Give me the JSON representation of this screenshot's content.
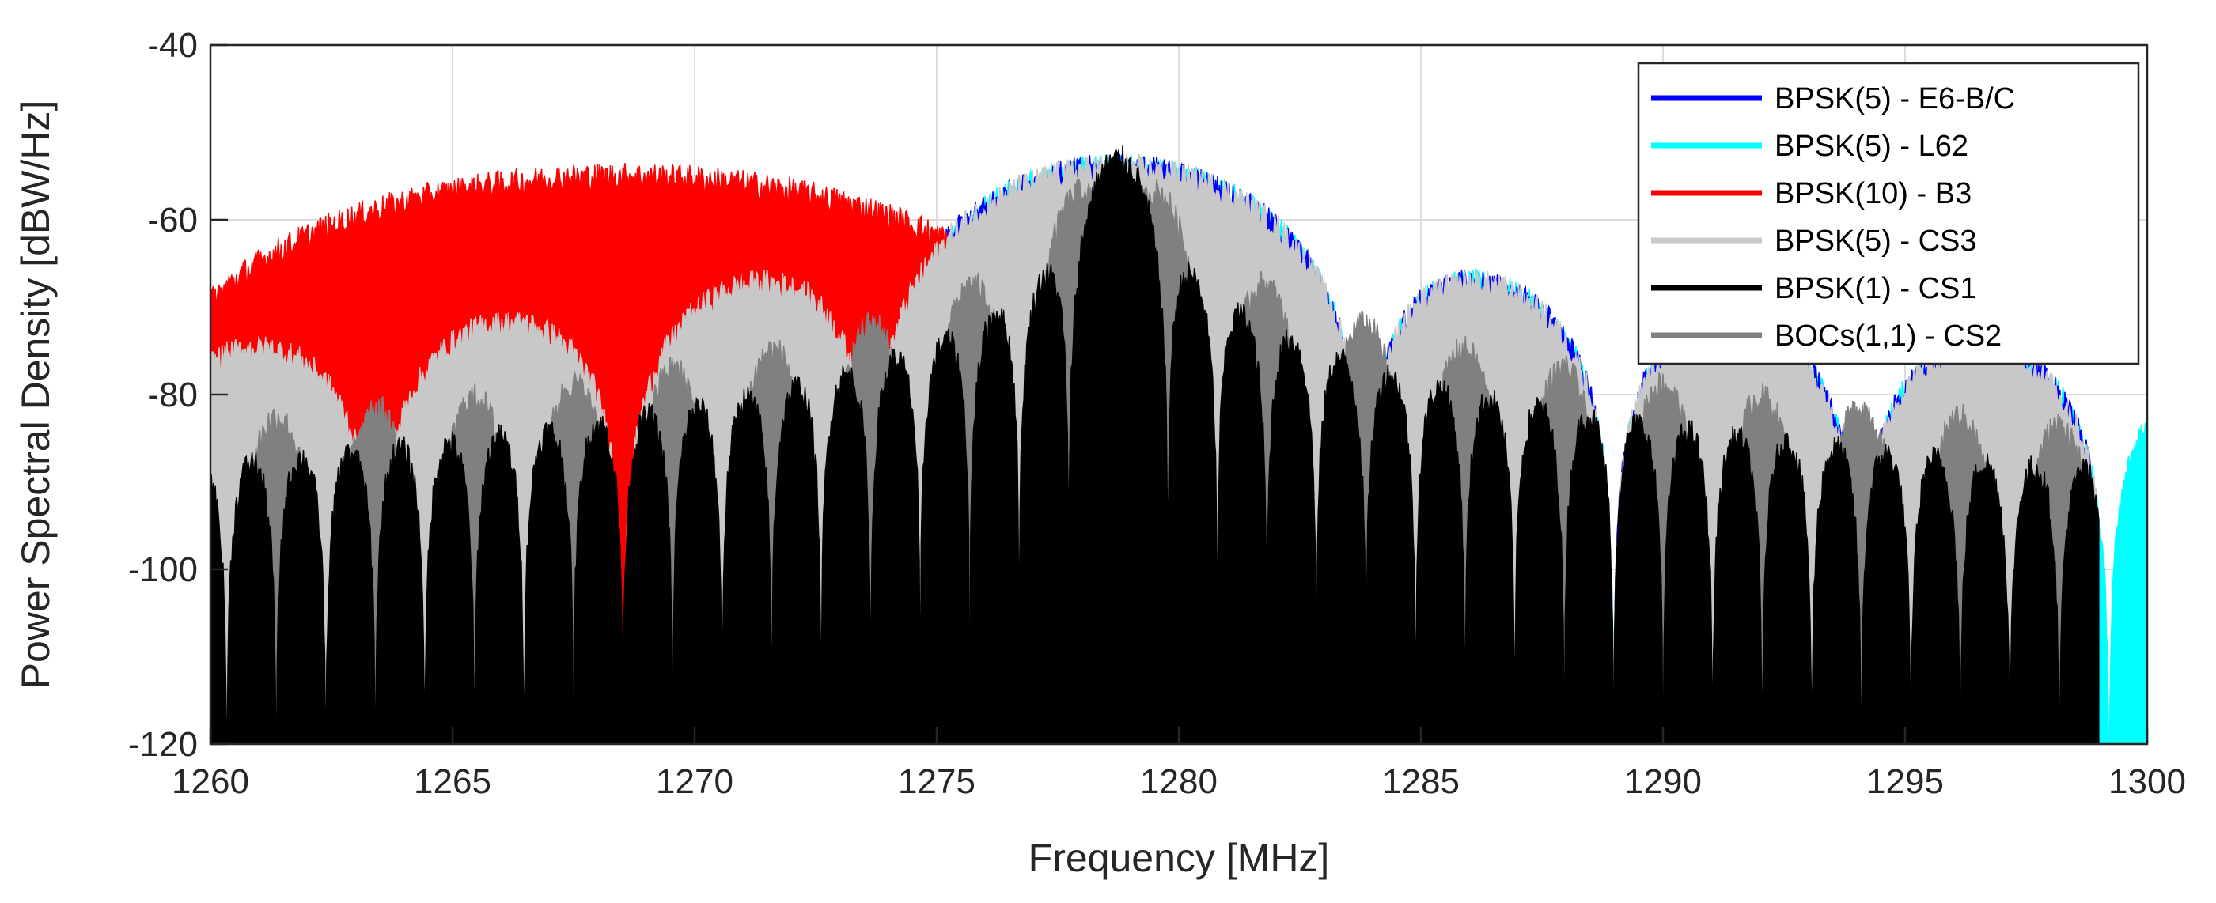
{
  "chart_data": {
    "type": "area",
    "title": "",
    "xlabel": "Frequency [MHz]",
    "ylabel": "Power Spectral Density [dBW/Hz]",
    "xlim": [
      1260,
      1300
    ],
    "ylim": [
      -120,
      -40
    ],
    "xticks": [
      1260,
      1265,
      1270,
      1275,
      1280,
      1285,
      1290,
      1295,
      1300
    ],
    "yticks": [
      -40,
      -60,
      -80,
      -100,
      -120
    ],
    "grid": true,
    "legend_position": "top-right",
    "series": [
      {
        "name": "BPSK(5) - E6-B/C",
        "color": "#0000ff",
        "modulation": "BPSK",
        "chip_rate_factor": 5,
        "center_mhz": 1278.75,
        "peak_db": -54,
        "x_range": [
          1260,
          1299
        ]
      },
      {
        "name": "BPSK(5) - L62",
        "color": "#00ffff",
        "modulation": "BPSK",
        "chip_rate_factor": 5,
        "center_mhz": 1278.75,
        "peak_db": -54,
        "x_range": [
          1260,
          1300
        ]
      },
      {
        "name": "BPSK(10) - B3",
        "color": "#ff0000",
        "modulation": "BPSK",
        "chip_rate_factor": 10,
        "center_mhz": 1268.52,
        "peak_db": -55,
        "x_range": [
          1260,
          1278.5
        ]
      },
      {
        "name": "BPSK(5) - CS3",
        "color": "#c8c8c8",
        "modulation": "BPSK",
        "chip_rate_factor": 5,
        "center_mhz": 1278.75,
        "peak_db": -54,
        "x_range": [
          1260,
          1299
        ]
      },
      {
        "name": "BPSK(1) - CS1",
        "color": "#000000",
        "modulation": "BPSK",
        "chip_rate_factor": 1,
        "center_mhz": 1278.75,
        "peak_db": -53,
        "x_range": [
          1260,
          1299
        ]
      },
      {
        "name": "BOCs(1,1) - CS2",
        "color": "#808080",
        "modulation": "BOCs",
        "chip_rate_factor": 1,
        "center_mhz": 1278.75,
        "peak_db": -54,
        "x_range": [
          1260,
          1299
        ]
      }
    ]
  }
}
